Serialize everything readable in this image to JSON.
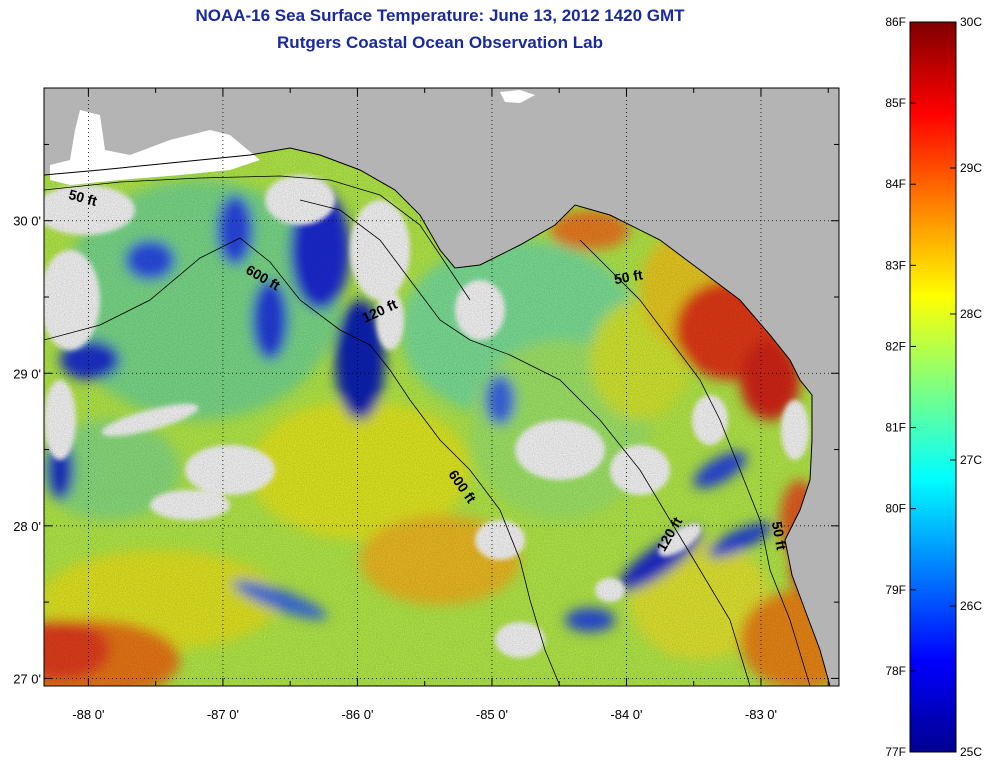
{
  "title_line1": "NOAA-16 Sea Surface Temperature:  June 13, 2012 1420 GMT",
  "title_line2": "Rutgers Coastal Ocean Observation Lab",
  "map": {
    "lon_ticks": [
      {
        "value": -88,
        "label": "-88 0'"
      },
      {
        "value": -87,
        "label": "-87 0'"
      },
      {
        "value": -86,
        "label": "-86 0'"
      },
      {
        "value": -85,
        "label": "-85 0'"
      },
      {
        "value": -84,
        "label": "-84 0'"
      },
      {
        "value": -83,
        "label": "-83 0'"
      }
    ],
    "lat_ticks": [
      {
        "value": 30,
        "label": "30 0'"
      },
      {
        "value": 29,
        "label": "29 0'"
      },
      {
        "value": 28,
        "label": "28 0'"
      },
      {
        "value": 27,
        "label": "27 0'"
      }
    ],
    "lon_range": [
      -88.33,
      -82.42
    ],
    "lat_range": [
      26.95,
      30.87
    ],
    "land_color": "#b4b4b4",
    "cloud_color": "#ffffff",
    "grid": "dotted",
    "contour_labels": [
      {
        "text": "50 ft",
        "lon": -88.05,
        "lat": 30.12,
        "rotate": 15
      },
      {
        "text": "600 ft",
        "lon": -86.72,
        "lat": 29.6,
        "rotate": 30
      },
      {
        "text": "120 ft",
        "lon": -85.82,
        "lat": 29.38,
        "rotate": -25
      },
      {
        "text": "50 ft",
        "lon": -83.98,
        "lat": 29.6,
        "rotate": -10
      },
      {
        "text": "600 ft",
        "lon": -85.25,
        "lat": 28.24,
        "rotate": 55
      },
      {
        "text": "120 ft",
        "lon": -83.65,
        "lat": 27.93,
        "rotate": -60
      },
      {
        "text": "50 ft",
        "lon": -82.9,
        "lat": 27.93,
        "rotate": 80
      }
    ]
  },
  "colorbar": {
    "min_c": 25,
    "max_c": 30,
    "f_labels": [
      "86F",
      "85F",
      "84F",
      "83F",
      "82F",
      "81F",
      "80F",
      "79F",
      "78F",
      "77F"
    ],
    "c_labels": [
      "30C",
      "29C",
      "28C",
      "27C",
      "26C",
      "25C"
    ]
  }
}
